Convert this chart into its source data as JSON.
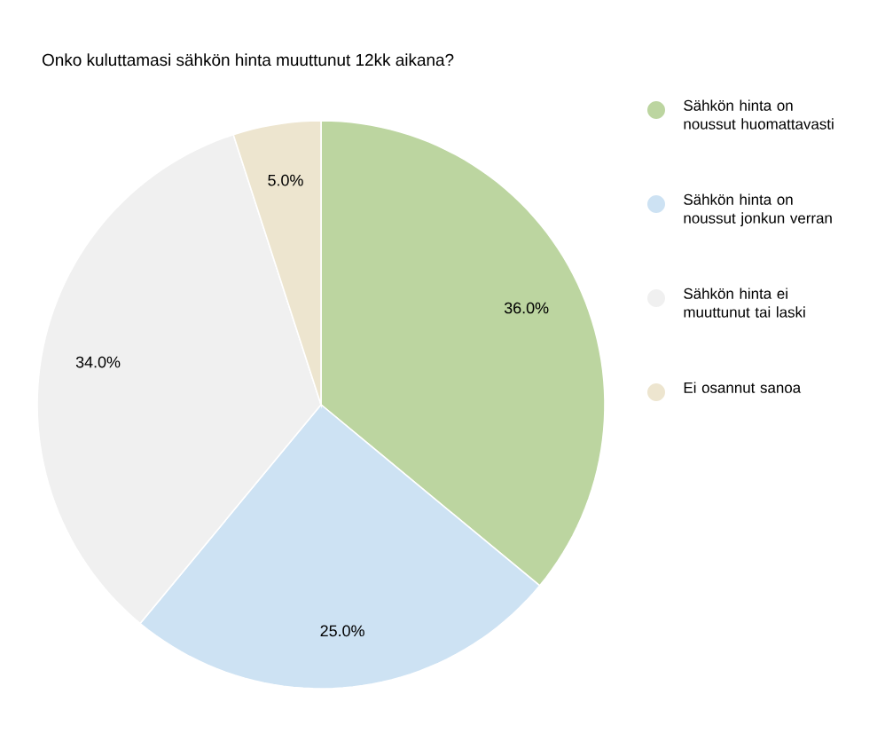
{
  "chart_data": {
    "type": "pie",
    "title": "Onko kuluttamasi sähkön hinta muuttunut 12kk aikana?",
    "categories": [
      "Sähkön hinta on noussut huomattavasti",
      "Sähkön hinta on noussut jonkun verran",
      "Sähkön hinta ei muuttunut tai laski",
      "Ei osannut sanoa"
    ],
    "values": [
      36,
      25,
      34,
      5
    ],
    "value_labels": [
      "36.0%",
      "25.0%",
      "34.0%",
      "5.0%"
    ],
    "colors": [
      "#bcd5a0",
      "#cde2f3",
      "#f0f0f0",
      "#ede5cf"
    ],
    "legend": "right"
  }
}
